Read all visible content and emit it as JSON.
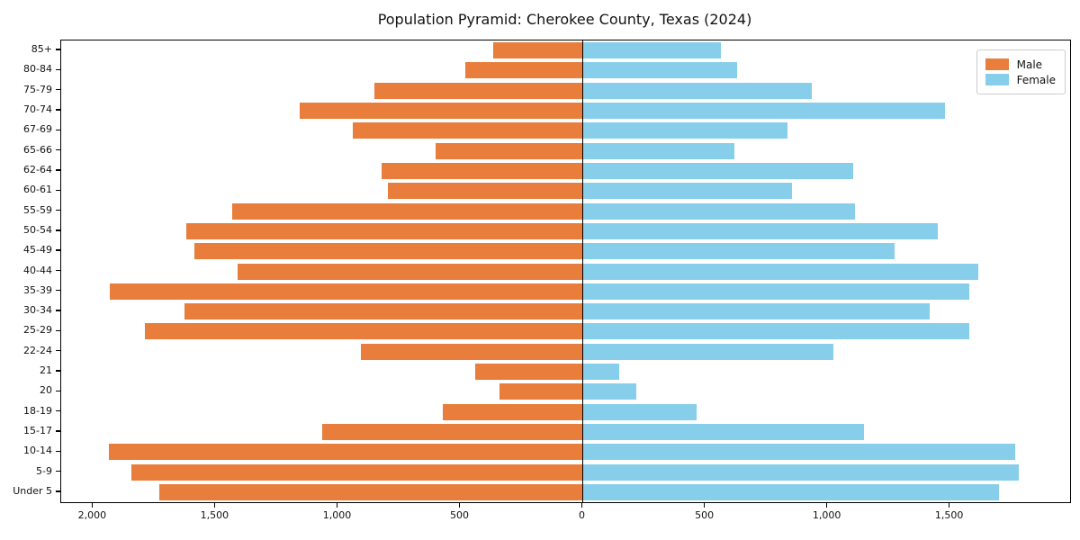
{
  "chart_data": {
    "type": "bar",
    "subtype": "population-pyramid",
    "title": "Population Pyramid: Cherokee County, Texas (2024)",
    "orientation": "horizontal-diverging",
    "categories": [
      "85+",
      "80-84",
      "75-79",
      "70-74",
      "67-69",
      "65-66",
      "62-64",
      "60-61",
      "55-59",
      "50-54",
      "45-49",
      "40-44",
      "35-39",
      "30-34",
      "25-29",
      "22-24",
      "21",
      "20",
      "18-19",
      "15-17",
      "10-14",
      "5-9",
      "Under 5"
    ],
    "series": [
      {
        "name": "Male",
        "side": "left",
        "color": "#E87D3C",
        "values": [
          365,
          480,
          850,
          1155,
          940,
          600,
          820,
          795,
          1430,
          1620,
          1585,
          1410,
          1930,
          1625,
          1790,
          905,
          440,
          340,
          570,
          1065,
          1935,
          1845,
          1730
        ]
      },
      {
        "name": "Female",
        "side": "right",
        "color": "#87CEEB",
        "values": [
          565,
          630,
          935,
          1480,
          835,
          620,
          1105,
          855,
          1110,
          1450,
          1275,
          1615,
          1580,
          1415,
          1580,
          1025,
          150,
          220,
          465,
          1150,
          1765,
          1780,
          1700
        ]
      }
    ],
    "xlim": [
      -2130,
      1990
    ],
    "x_ticks": [
      {
        "value": -2000,
        "label": "2,000"
      },
      {
        "value": -1500,
        "label": "1,500"
      },
      {
        "value": -1000,
        "label": "1,000"
      },
      {
        "value": -500,
        "label": "500"
      },
      {
        "value": 0,
        "label": "0"
      },
      {
        "value": 500,
        "label": "500"
      },
      {
        "value": 1000,
        "label": "1,000"
      },
      {
        "value": 1500,
        "label": "1,500"
      }
    ],
    "legend": {
      "male_label": "Male",
      "female_label": "Female",
      "position": "upper right"
    },
    "grid": false,
    "zero_line_color": "#000000",
    "axis_color": "#000000",
    "background_color": "#ffffff"
  }
}
